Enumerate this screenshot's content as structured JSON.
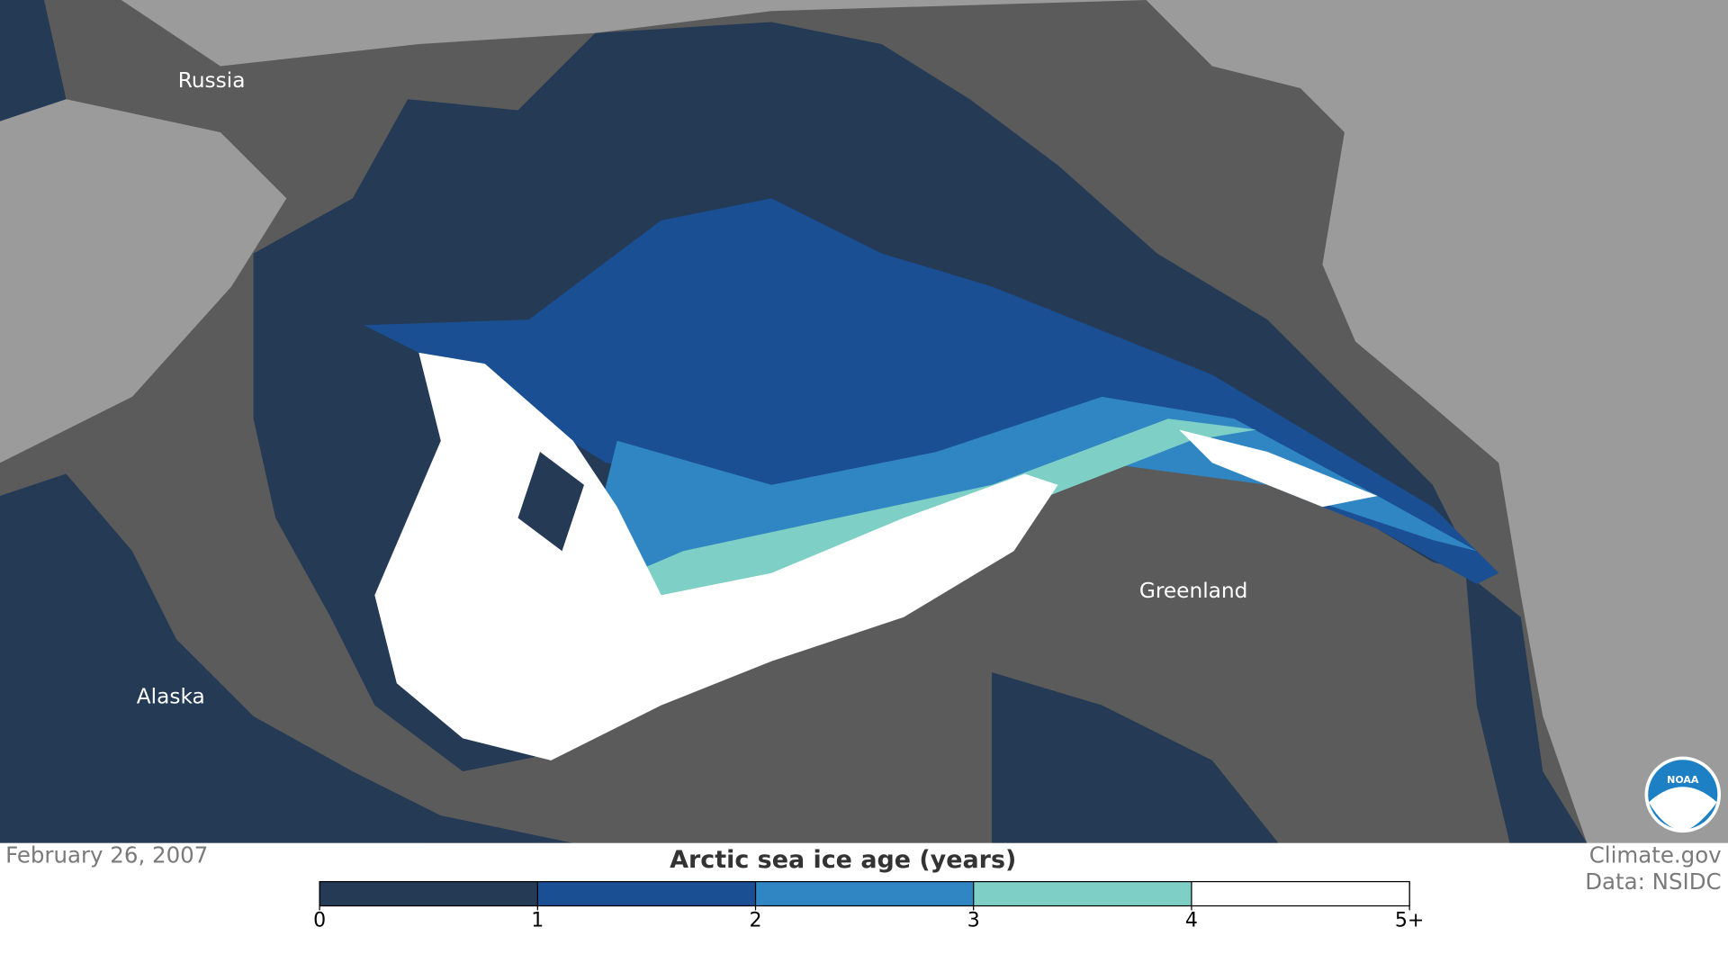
{
  "map": {
    "places": [
      "Russia",
      "Alaska",
      "Greenland"
    ],
    "date": "February 26, 2007",
    "credits": [
      "Climate.gov",
      "Data: NSIDC"
    ],
    "logo_text": "NOAA"
  },
  "legend": {
    "title": "Arctic sea ice age (years)",
    "ticks": [
      0,
      1,
      2,
      3,
      4,
      {
        "value": 5,
        "label": "5+"
      }
    ],
    "colors": [
      "#243a55",
      "#1b4f93",
      "#2f86c2",
      "#7ecfc5",
      "#ffffff"
    ]
  }
}
